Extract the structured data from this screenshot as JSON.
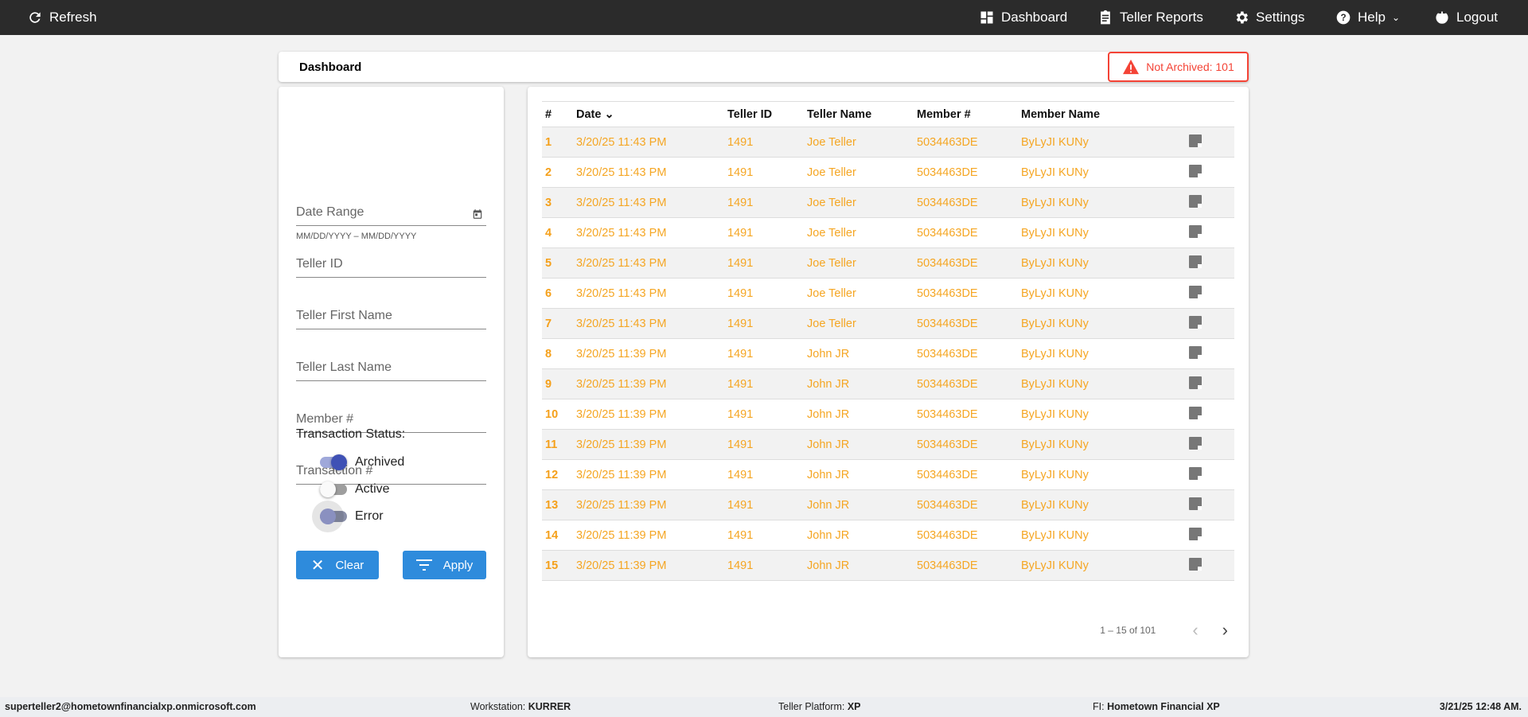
{
  "nav": {
    "refresh": "Refresh",
    "dashboard": "Dashboard",
    "teller_reports": "Teller Reports",
    "settings": "Settings",
    "help": "Help",
    "logout": "Logout"
  },
  "header": {
    "title": "Dashboard",
    "badge": "Not Archived: 101"
  },
  "filters": {
    "date_range": "Date Range",
    "date_hint": "MM/DD/YYYY – MM/DD/YYYY",
    "teller_id": "Teller ID",
    "teller_first": "Teller First Name",
    "teller_last": "Teller Last Name",
    "member": "Member #",
    "transaction": "Transaction #",
    "status_label": "Transaction Status:",
    "toggles": [
      {
        "label": "Archived",
        "on": true
      },
      {
        "label": "Active",
        "on": false
      },
      {
        "label": "Error",
        "on": false
      }
    ],
    "clear": "Clear",
    "apply": "Apply"
  },
  "table": {
    "columns": [
      "#",
      "Date",
      "Teller ID",
      "Teller Name",
      "Member #",
      "Member Name"
    ],
    "rows": [
      [
        "1",
        "3/20/25 11:43 PM",
        "1491",
        "Joe Teller",
        "5034463DE",
        "ByLyJI KUNy"
      ],
      [
        "2",
        "3/20/25 11:43 PM",
        "1491",
        "Joe Teller",
        "5034463DE",
        "ByLyJI KUNy"
      ],
      [
        "3",
        "3/20/25 11:43 PM",
        "1491",
        "Joe Teller",
        "5034463DE",
        "ByLyJI KUNy"
      ],
      [
        "4",
        "3/20/25 11:43 PM",
        "1491",
        "Joe Teller",
        "5034463DE",
        "ByLyJI KUNy"
      ],
      [
        "5",
        "3/20/25 11:43 PM",
        "1491",
        "Joe Teller",
        "5034463DE",
        "ByLyJI KUNy"
      ],
      [
        "6",
        "3/20/25 11:43 PM",
        "1491",
        "Joe Teller",
        "5034463DE",
        "ByLyJI KUNy"
      ],
      [
        "7",
        "3/20/25 11:43 PM",
        "1491",
        "Joe Teller",
        "5034463DE",
        "ByLyJI KUNy"
      ],
      [
        "8",
        "3/20/25 11:39 PM",
        "1491",
        "John JR",
        "5034463DE",
        "ByLyJI KUNy"
      ],
      [
        "9",
        "3/20/25 11:39 PM",
        "1491",
        "John JR",
        "5034463DE",
        "ByLyJI KUNy"
      ],
      [
        "10",
        "3/20/25 11:39 PM",
        "1491",
        "John JR",
        "5034463DE",
        "ByLyJI KUNy"
      ],
      [
        "11",
        "3/20/25 11:39 PM",
        "1491",
        "John JR",
        "5034463DE",
        "ByLyJI KUNy"
      ],
      [
        "12",
        "3/20/25 11:39 PM",
        "1491",
        "John JR",
        "5034463DE",
        "ByLyJI KUNy"
      ],
      [
        "13",
        "3/20/25 11:39 PM",
        "1491",
        "John JR",
        "5034463DE",
        "ByLyJI KUNy"
      ],
      [
        "14",
        "3/20/25 11:39 PM",
        "1491",
        "John JR",
        "5034463DE",
        "ByLyJI KUNy"
      ],
      [
        "15",
        "3/20/25 11:39 PM",
        "1491",
        "John JR",
        "5034463DE",
        "ByLyJI KUNy"
      ]
    ],
    "pagination": "1 – 15 of 101"
  },
  "footer": {
    "user": "superteller2@hometownfinancialxp.onmicrosoft.com",
    "workstation_label": "Workstation:",
    "workstation": "KURRER",
    "platform_label": "Teller Platform:",
    "platform": "XP",
    "fi_label": "FI:",
    "fi": "Hometown Financial XP",
    "datetime": "3/21/25 12:48 AM."
  },
  "colors": {
    "accent": "#2e8bdc",
    "row_text": "#f5a623",
    "alert": "#f44336",
    "toggle_on": "#3f51b5"
  }
}
